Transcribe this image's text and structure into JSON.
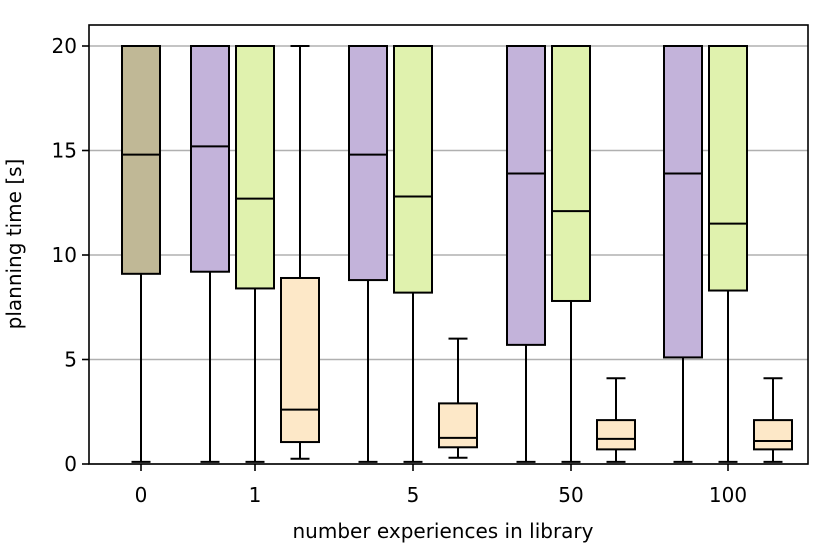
{
  "chart_data": {
    "type": "box",
    "title": "",
    "xlabel": "number experiences in library",
    "ylabel": "planning time [s]",
    "ylim": [
      0,
      20
    ],
    "yticks": [
      0,
      5,
      10,
      15,
      20
    ],
    "grid": "y",
    "categories": [
      "0",
      "1",
      "5",
      "50",
      "100"
    ],
    "series_colors": [
      "#c0b896",
      "#c3b3da",
      "#e0f2ae",
      "#fde8c8"
    ],
    "boxes": [
      {
        "category": "0",
        "slot": 0,
        "min": 0.1,
        "q1": 9.1,
        "median": 14.8,
        "q3": 20.0,
        "max": 20.0
      },
      {
        "category": "1",
        "slot": 1,
        "min": 0.1,
        "q1": 9.2,
        "median": 15.2,
        "q3": 20.0,
        "max": 20.0
      },
      {
        "category": "1",
        "slot": 2,
        "min": 0.1,
        "q1": 8.4,
        "median": 12.7,
        "q3": 20.0,
        "max": 20.0
      },
      {
        "category": "1",
        "slot": 3,
        "min": 0.25,
        "q1": 1.05,
        "median": 2.6,
        "q3": 8.9,
        "max": 20.0
      },
      {
        "category": "5",
        "slot": 1,
        "min": 0.1,
        "q1": 8.8,
        "median": 14.8,
        "q3": 20.0,
        "max": 20.0
      },
      {
        "category": "5",
        "slot": 2,
        "min": 0.1,
        "q1": 8.2,
        "median": 12.8,
        "q3": 20.0,
        "max": 20.0
      },
      {
        "category": "5",
        "slot": 3,
        "min": 0.3,
        "q1": 0.8,
        "median": 1.25,
        "q3": 2.9,
        "max": 6.0
      },
      {
        "category": "50",
        "slot": 1,
        "min": 0.1,
        "q1": 5.7,
        "median": 13.9,
        "q3": 20.0,
        "max": 20.0
      },
      {
        "category": "50",
        "slot": 2,
        "min": 0.1,
        "q1": 7.8,
        "median": 12.1,
        "q3": 20.0,
        "max": 20.0
      },
      {
        "category": "50",
        "slot": 3,
        "min": 0.1,
        "q1": 0.7,
        "median": 1.2,
        "q3": 2.1,
        "max": 4.1
      },
      {
        "category": "100",
        "slot": 1,
        "min": 0.1,
        "q1": 5.1,
        "median": 13.9,
        "q3": 20.0,
        "max": 20.0
      },
      {
        "category": "100",
        "slot": 2,
        "min": 0.1,
        "q1": 8.3,
        "median": 11.5,
        "q3": 20.0,
        "max": 20.0
      },
      {
        "category": "100",
        "slot": 3,
        "min": 0.1,
        "q1": 0.7,
        "median": 1.1,
        "q3": 2.1,
        "max": 4.1
      }
    ]
  }
}
